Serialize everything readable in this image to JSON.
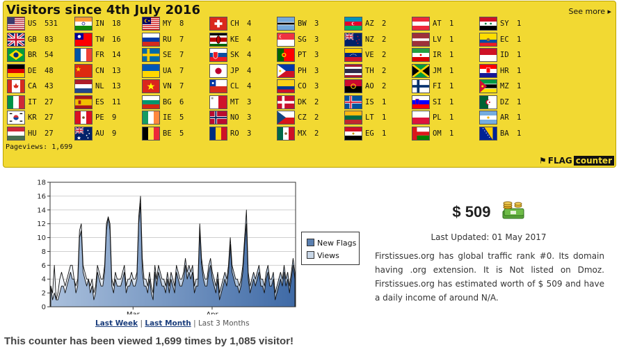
{
  "flagcounter": {
    "title": "Visitors since 4th July 2016",
    "see_more": "See more ▸",
    "pageviews": "Pageviews: 1,699",
    "logo_word1": "FLAG",
    "logo_word2": "counter",
    "countries": [
      {
        "code": "US",
        "count": "531"
      },
      {
        "code": "GB",
        "count": "83"
      },
      {
        "code": "BR",
        "count": "54"
      },
      {
        "code": "DE",
        "count": "48"
      },
      {
        "code": "CA",
        "count": "43"
      },
      {
        "code": "IT",
        "count": "27"
      },
      {
        "code": "KR",
        "count": "27"
      },
      {
        "code": "HU",
        "count": "27"
      },
      {
        "code": "IN",
        "count": "18"
      },
      {
        "code": "TW",
        "count": "16"
      },
      {
        "code": "FR",
        "count": "14"
      },
      {
        "code": "CN",
        "count": "13"
      },
      {
        "code": "NL",
        "count": "13"
      },
      {
        "code": "ES",
        "count": "11"
      },
      {
        "code": "PE",
        "count": "9"
      },
      {
        "code": "AU",
        "count": "9"
      },
      {
        "code": "MY",
        "count": "8"
      },
      {
        "code": "RU",
        "count": "7"
      },
      {
        "code": "SE",
        "count": "7"
      },
      {
        "code": "UA",
        "count": "7"
      },
      {
        "code": "VN",
        "count": "7"
      },
      {
        "code": "BG",
        "count": "6"
      },
      {
        "code": "IE",
        "count": "5"
      },
      {
        "code": "BE",
        "count": "5"
      },
      {
        "code": "CH",
        "count": "4"
      },
      {
        "code": "KE",
        "count": "4"
      },
      {
        "code": "SK",
        "count": "4"
      },
      {
        "code": "JP",
        "count": "4"
      },
      {
        "code": "CL",
        "count": "4"
      },
      {
        "code": "MT",
        "count": "3"
      },
      {
        "code": "NO",
        "count": "3"
      },
      {
        "code": "RO",
        "count": "3"
      },
      {
        "code": "BW",
        "count": "3"
      },
      {
        "code": "SG",
        "count": "3"
      },
      {
        "code": "PT",
        "count": "3"
      },
      {
        "code": "PH",
        "count": "3"
      },
      {
        "code": "CO",
        "count": "3"
      },
      {
        "code": "DK",
        "count": "2"
      },
      {
        "code": "CZ",
        "count": "2"
      },
      {
        "code": "MX",
        "count": "2"
      },
      {
        "code": "AZ",
        "count": "2"
      },
      {
        "code": "NZ",
        "count": "2"
      },
      {
        "code": "VE",
        "count": "2"
      },
      {
        "code": "TH",
        "count": "2"
      },
      {
        "code": "AO",
        "count": "2"
      },
      {
        "code": "IS",
        "count": "1"
      },
      {
        "code": "LT",
        "count": "1"
      },
      {
        "code": "EG",
        "count": "1"
      },
      {
        "code": "AT",
        "count": "1"
      },
      {
        "code": "LV",
        "count": "1"
      },
      {
        "code": "IR",
        "count": "1"
      },
      {
        "code": "JM",
        "count": "1"
      },
      {
        "code": "FI",
        "count": "1"
      },
      {
        "code": "SI",
        "count": "1"
      },
      {
        "code": "PL",
        "count": "1"
      },
      {
        "code": "OM",
        "count": "1"
      },
      {
        "code": "SY",
        "count": "1"
      },
      {
        "code": "EC",
        "count": "1"
      },
      {
        "code": "ID",
        "count": "1"
      },
      {
        "code": "HR",
        "count": "1"
      },
      {
        "code": "MZ",
        "count": "1"
      },
      {
        "code": "DZ",
        "count": "1"
      },
      {
        "code": "AR",
        "count": "1"
      },
      {
        "code": "BA",
        "count": "1"
      }
    ]
  },
  "chart_data": {
    "type": "area",
    "ylim": [
      0,
      18
    ],
    "yticks": [
      0,
      2,
      4,
      6,
      8,
      10,
      12,
      14,
      16,
      18
    ],
    "x_tick_labels": [
      "Mar",
      "Apr"
    ],
    "grid": true,
    "legend_position": "right",
    "series": [
      {
        "name": "New Flags",
        "color": "#5a7fb0",
        "values": [
          3,
          1,
          2,
          1,
          1,
          2,
          3,
          3,
          2,
          3,
          4,
          5,
          4,
          4,
          2,
          3,
          10,
          11,
          5,
          4,
          3,
          4,
          2,
          3,
          1,
          2,
          5,
          4,
          3,
          3,
          5,
          11,
          13,
          11,
          3,
          2,
          4,
          3,
          3,
          3,
          4,
          5,
          2,
          3,
          3,
          4,
          3,
          3,
          4,
          12,
          15,
          5,
          3,
          3,
          2,
          4,
          2,
          1,
          5,
          3,
          5,
          4,
          3,
          3,
          2,
          4,
          2,
          4,
          3,
          2,
          5,
          4,
          3,
          3,
          4,
          6,
          4,
          5,
          4,
          5,
          2,
          3,
          3,
          11,
          6,
          4,
          3,
          3,
          5,
          6,
          4,
          3,
          2,
          4,
          1,
          2,
          3,
          4,
          3,
          5,
          9,
          5,
          4,
          3,
          3,
          2,
          3,
          5,
          9,
          12,
          4,
          2,
          3,
          4,
          3,
          4,
          5,
          3,
          3,
          2,
          4,
          5,
          3,
          3,
          4,
          1,
          2,
          3,
          4,
          3,
          5,
          3,
          4,
          2,
          4,
          6,
          4
        ]
      },
      {
        "name": "Views",
        "color": "#c8d6e6",
        "values": [
          3,
          2,
          6,
          1,
          2,
          4,
          5,
          4,
          3,
          4,
          5,
          6,
          6,
          4,
          3,
          4,
          11,
          12,
          6,
          5,
          4,
          4,
          3,
          4,
          2,
          3,
          6,
          5,
          4,
          4,
          6,
          12,
          13,
          12,
          4,
          3,
          5,
          4,
          4,
          4,
          5,
          6,
          3,
          4,
          4,
          5,
          4,
          4,
          5,
          13,
          16,
          7,
          4,
          4,
          3,
          5,
          3,
          2,
          6,
          4,
          6,
          5,
          4,
          4,
          3,
          5,
          3,
          5,
          4,
          3,
          6,
          5,
          4,
          4,
          5,
          7,
          5,
          6,
          5,
          6,
          3,
          4,
          4,
          12,
          7,
          5,
          4,
          4,
          6,
          7,
          5,
          4,
          3,
          5,
          2,
          3,
          4,
          5,
          4,
          6,
          10,
          6,
          5,
          4,
          4,
          3,
          4,
          6,
          10,
          14,
          5,
          3,
          4,
          5,
          4,
          5,
          6,
          4,
          4,
          3,
          5,
          6,
          4,
          4,
          5,
          2,
          3,
          4,
          5,
          4,
          6,
          4,
          5,
          3,
          5,
          7,
          5
        ]
      }
    ]
  },
  "range": {
    "last_week": "Last Week",
    "last_month": "Last Month",
    "sep": "|",
    "last_3_months": "Last 3 Months"
  },
  "counter_line": "This counter has been viewed 1,699 times by 1,085 visitor!",
  "worth": {
    "value": "$ 509",
    "updated": "Last Updated: 01 May 2017",
    "description": "Firstissues.org has global traffic rank #0. Its domain having .org extension. It is Not listed on Dmoz. Firstissues.org has estimated worth of $ 509 and have a daily income of around N/A."
  }
}
